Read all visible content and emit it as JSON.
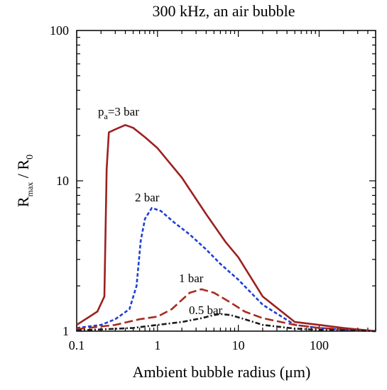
{
  "chart_data": {
    "type": "line",
    "title": "300 kHz, an air bubble",
    "xlabel": "Ambient bubble radius (μm)",
    "ylabel": {
      "base": "R",
      "sub1": "max",
      "sep": " / R",
      "sub2": "0"
    },
    "x_scale": "log",
    "y_scale": "log",
    "xlim": [
      0.1,
      500
    ],
    "ylim": [
      1,
      100
    ],
    "x_ticks": [
      {
        "value": 0.1,
        "label": "0.1"
      },
      {
        "value": 1,
        "label": "1"
      },
      {
        "value": 10,
        "label": "10"
      },
      {
        "value": 100,
        "label": "100"
      }
    ],
    "y_ticks": [
      {
        "value": 1,
        "label": "1"
      },
      {
        "value": 10,
        "label": "10"
      },
      {
        "value": 100,
        "label": "100"
      }
    ],
    "grid": false,
    "series": [
      {
        "key": "pa3",
        "color": "#9b2120",
        "dash": "solid",
        "points": [
          [
            0.1,
            1.1
          ],
          [
            0.18,
            1.35
          ],
          [
            0.22,
            1.7
          ],
          [
            0.235,
            12
          ],
          [
            0.25,
            21
          ],
          [
            0.3,
            22
          ],
          [
            0.4,
            23.5
          ],
          [
            0.5,
            22.5
          ],
          [
            0.7,
            19.5
          ],
          [
            1,
            16.5
          ],
          [
            2,
            10.5
          ],
          [
            4,
            6.0
          ],
          [
            7,
            3.9
          ],
          [
            10,
            3.1
          ],
          [
            20,
            1.7
          ],
          [
            50,
            1.15
          ],
          [
            100,
            1.1
          ],
          [
            200,
            1.05
          ],
          [
            500,
            1.0
          ]
        ]
      },
      {
        "key": "pa2",
        "color": "#1f3fd6",
        "dash": "dashed-fine",
        "points": [
          [
            0.1,
            1.05
          ],
          [
            0.2,
            1.1
          ],
          [
            0.3,
            1.2
          ],
          [
            0.45,
            1.4
          ],
          [
            0.55,
            2.0
          ],
          [
            0.62,
            4.0
          ],
          [
            0.7,
            5.6
          ],
          [
            0.85,
            6.6
          ],
          [
            1.1,
            6.3
          ],
          [
            1.6,
            5.3
          ],
          [
            2.5,
            4.4
          ],
          [
            4,
            3.5
          ],
          [
            6,
            2.8
          ],
          [
            10,
            2.2
          ],
          [
            20,
            1.5
          ],
          [
            50,
            1.1
          ],
          [
            100,
            1.05
          ],
          [
            300,
            1.01
          ],
          [
            500,
            1.0
          ]
        ]
      },
      {
        "key": "pa1",
        "color": "#a82b22",
        "dash": "dashed-long",
        "points": [
          [
            0.1,
            1.03
          ],
          [
            0.3,
            1.1
          ],
          [
            0.6,
            1.2
          ],
          [
            1,
            1.25
          ],
          [
            1.5,
            1.4
          ],
          [
            2.5,
            1.8
          ],
          [
            3.5,
            1.9
          ],
          [
            5,
            1.8
          ],
          [
            8,
            1.55
          ],
          [
            12,
            1.35
          ],
          [
            20,
            1.22
          ],
          [
            50,
            1.1
          ],
          [
            100,
            1.05
          ],
          [
            300,
            1.02
          ],
          [
            500,
            1.0
          ]
        ]
      },
      {
        "key": "pa05",
        "color": "#1a1a1a",
        "dash": "dash-dot",
        "points": [
          [
            0.1,
            1.01
          ],
          [
            0.5,
            1.05
          ],
          [
            1,
            1.1
          ],
          [
            2,
            1.15
          ],
          [
            3.5,
            1.22
          ],
          [
            5,
            1.28
          ],
          [
            6,
            1.3
          ],
          [
            8,
            1.28
          ],
          [
            12,
            1.2
          ],
          [
            20,
            1.1
          ],
          [
            50,
            1.04
          ],
          [
            100,
            1.02
          ],
          [
            300,
            1.01
          ],
          [
            500,
            1.0
          ]
        ]
      }
    ],
    "annotations": [
      {
        "key": "pa3",
        "prefix": "p",
        "sub": "a",
        "text": "=3 bar"
      },
      {
        "key": "pa2",
        "text": "2 bar"
      },
      {
        "key": "pa1",
        "text": "1 bar"
      },
      {
        "key": "pa05",
        "text": "0.5 bar"
      }
    ]
  }
}
